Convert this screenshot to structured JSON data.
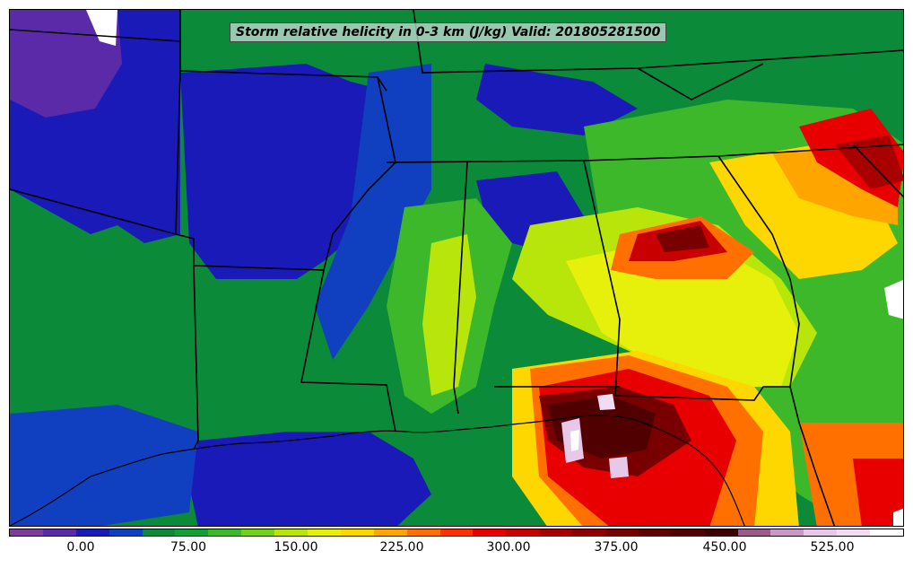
{
  "title": "Storm relative helicity in 0-3 km (J/kg) Valid: 201805281500",
  "colorbar": {
    "ticks": [
      "0.00",
      "75.00",
      "150.00",
      "225.00",
      "300.00",
      "375.00",
      "450.00",
      "525.00"
    ],
    "colors": [
      "#7b3f99",
      "#5a2aa8",
      "#1a1ab8",
      "#1040c0",
      "#0b8a3a",
      "#0fa038",
      "#3cb82a",
      "#74d018",
      "#b8e60a",
      "#e6f00a",
      "#ffd700",
      "#ffa500",
      "#ff7000",
      "#ff3000",
      "#e80000",
      "#c80000",
      "#a80000",
      "#900000",
      "#780000",
      "#600000",
      "#500000",
      "#3c0000",
      "#9a5a8a",
      "#c89ac8",
      "#e8c8e8",
      "#f2dcf2",
      "#ffffff"
    ]
  },
  "map": {
    "region": "Southeastern United States",
    "land_color": "#0b8a3a",
    "boundary_color": "#000000"
  }
}
